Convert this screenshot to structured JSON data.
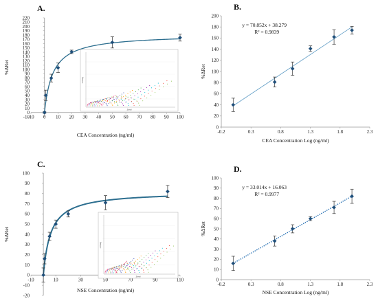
{
  "chart_data": [
    {
      "id": "A",
      "panel_label": "A.",
      "type": "scatter",
      "xlabel": "CEA Concentration (ng/ml)",
      "ylabel": "%ΔRet",
      "xlim": [
        -10,
        100
      ],
      "ylim": [
        -10,
        220
      ],
      "xticks": [
        -10,
        0,
        10,
        20,
        30,
        40,
        50,
        60,
        70,
        80,
        90,
        100
      ],
      "yticks": [
        -10,
        0,
        10,
        20,
        30,
        40,
        50,
        60,
        70,
        80,
        90,
        100,
        110,
        120,
        130,
        140,
        150,
        160,
        170,
        180,
        190,
        200,
        210,
        220
      ],
      "x": [
        0,
        1,
        5,
        10,
        20,
        50,
        100
      ],
      "y": [
        0,
        40,
        80,
        104,
        141,
        163,
        174
      ],
      "err": [
        2,
        12,
        9,
        11,
        4,
        13,
        8
      ],
      "curve": "saturating",
      "inset": {
        "xlabel": "Zreal",
        "ylabel": "-Zimag"
      }
    },
    {
      "id": "B",
      "panel_label": "B.",
      "type": "scatter",
      "xlabel": "CEA Concentration Log (ng/ml)",
      "ylabel": "%ΔRet",
      "xlim": [
        -0.2,
        2.3
      ],
      "ylim": [
        0,
        200
      ],
      "xticks": [
        -0.2,
        0.3,
        0.8,
        1.3,
        1.8,
        2.3
      ],
      "yticks": [
        0,
        20,
        40,
        60,
        80,
        100,
        120,
        140,
        160,
        180,
        200
      ],
      "x": [
        0,
        0.699,
        1,
        1.301,
        1.699,
        2
      ],
      "y": [
        40,
        81,
        105,
        141,
        162,
        174
      ],
      "err": [
        12,
        9,
        12,
        5,
        13,
        7
      ],
      "fit": {
        "slope": 70.852,
        "intercept": 38.279
      },
      "equation": "y = 70.852x + 38.279",
      "r2": "R² = 0.9839"
    },
    {
      "id": "C",
      "panel_label": "C.",
      "type": "scatter",
      "xlabel": "NSE Concentration (ng/ml)",
      "ylabel": "%ΔRet",
      "xlim": [
        -10,
        110
      ],
      "ylim": [
        -20,
        100
      ],
      "xticks": [
        -10,
        10,
        30,
        50,
        70,
        90,
        110
      ],
      "yticks": [
        -20,
        -10,
        0,
        10,
        20,
        30,
        40,
        50,
        60,
        70,
        80,
        90,
        100
      ],
      "x": [
        0,
        1,
        5,
        10,
        20,
        50,
        100
      ],
      "y": [
        0,
        16,
        38,
        50,
        60,
        71,
        82
      ],
      "err": [
        7,
        5,
        4,
        4,
        3,
        7,
        6
      ],
      "curve": "saturating",
      "inset": {
        "xlabel": "Zreal",
        "ylabel": "-Zimag"
      }
    },
    {
      "id": "D",
      "panel_label": "D.",
      "type": "scatter",
      "xlabel": "NSE Concentration Log (ng/ml)",
      "ylabel": "%ΔRet",
      "xlim": [
        -0.2,
        2.3
      ],
      "ylim": [
        0,
        100
      ],
      "xticks": [
        -0.2,
        0.3,
        0.8,
        1.3,
        1.8,
        2.3
      ],
      "yticks": [
        0,
        10,
        20,
        30,
        40,
        50,
        60,
        70,
        80,
        90,
        100
      ],
      "x": [
        0,
        0.699,
        1,
        1.301,
        1.699,
        2
      ],
      "y": [
        16,
        38,
        50,
        60,
        71,
        82
      ],
      "err": [
        7,
        5,
        4,
        2,
        6,
        7
      ],
      "fit": {
        "slope": 33.014,
        "intercept": 16.063
      },
      "equation": "y = 33.014x + 16.063",
      "r2": "R² = 0.9977"
    }
  ],
  "colors": {
    "curve": "#2c6e8f",
    "marker": "#1f4e79",
    "fit_line": "#6aa3c9",
    "fit_line_dotted": "#2e75b6",
    "axis": "#999999"
  }
}
